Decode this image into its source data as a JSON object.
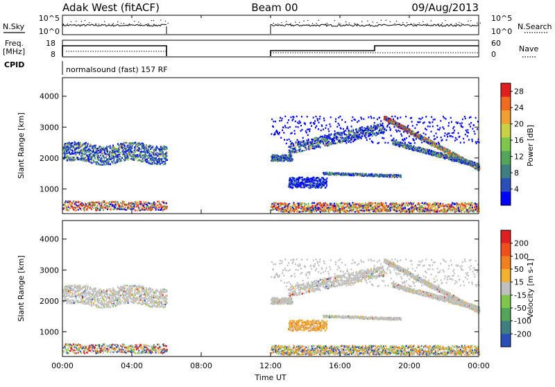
{
  "header": {
    "station": "Adak West (fitACF)",
    "beam": "Beam 00",
    "date": "09/Aug/2013"
  },
  "labels": {
    "nsky": "N.Sky",
    "nsearch": "N.Search",
    "freq_line1": "Freq.",
    "freq_line2": "[MHz]",
    "nave": "Nave",
    "cpid": "CPID",
    "cpid_value": "normalsound (fast) 157 RF",
    "nsky_top": "10^5",
    "nsky_bottom": "10^0",
    "nsearch_top": "10^5",
    "nsearch_bottom": "10^0",
    "freq_top": "18",
    "freq_bottom": "8",
    "nave_top": "60",
    "nave_bottom": "0"
  },
  "colors": {
    "axis": "#000000",
    "power_scale": [
      "#0000ff",
      "#2a4fb8",
      "#3f7f7f",
      "#53a55a",
      "#7fc64f",
      "#c8d043",
      "#f0a030",
      "#f06a20",
      "#e02020"
    ],
    "velocity_scale": [
      "#2a4fb8",
      "#3f7f7f",
      "#53a55a",
      "#7fc64f",
      "#c0c0c0",
      "#f0b030",
      "#f08020",
      "#f05020",
      "#e02020"
    ]
  },
  "chart_data": [
    {
      "type": "heatmap",
      "name": "power-panel",
      "ylabel": "Slant Range [km]",
      "x_ticks": [
        "00:00",
        "04:00",
        "08:00",
        "12:00",
        "16:00",
        "20:00",
        "00:00"
      ],
      "y_ticks": [
        1000,
        2000,
        3000,
        4000
      ],
      "ylim": [
        200,
        4600
      ],
      "xlim_hours": [
        0,
        24
      ],
      "colorbar": {
        "label": "Power [dB]",
        "ticks": [
          4,
          8,
          12,
          16,
          20,
          24,
          28
        ],
        "range": [
          0,
          30
        ]
      },
      "data_gaps_hours": [
        [
          6,
          12
        ]
      ]
    },
    {
      "type": "heatmap",
      "name": "velocity-panel",
      "ylabel": "Slant Range [km]",
      "xlabel": "Time UT",
      "x_ticks": [
        "00:00",
        "04:00",
        "08:00",
        "12:00",
        "16:00",
        "20:00",
        "00:00"
      ],
      "y_ticks": [
        1000,
        2000,
        3000,
        4000
      ],
      "ylim": [
        200,
        4600
      ],
      "xlim_hours": [
        0,
        24
      ],
      "colorbar": {
        "label": "Velocity [m s-1]",
        "ticks": [
          200,
          100,
          50,
          15,
          -15,
          -50,
          -100,
          -200
        ]
      },
      "data_gaps_hours": [
        [
          6,
          12
        ]
      ]
    }
  ]
}
